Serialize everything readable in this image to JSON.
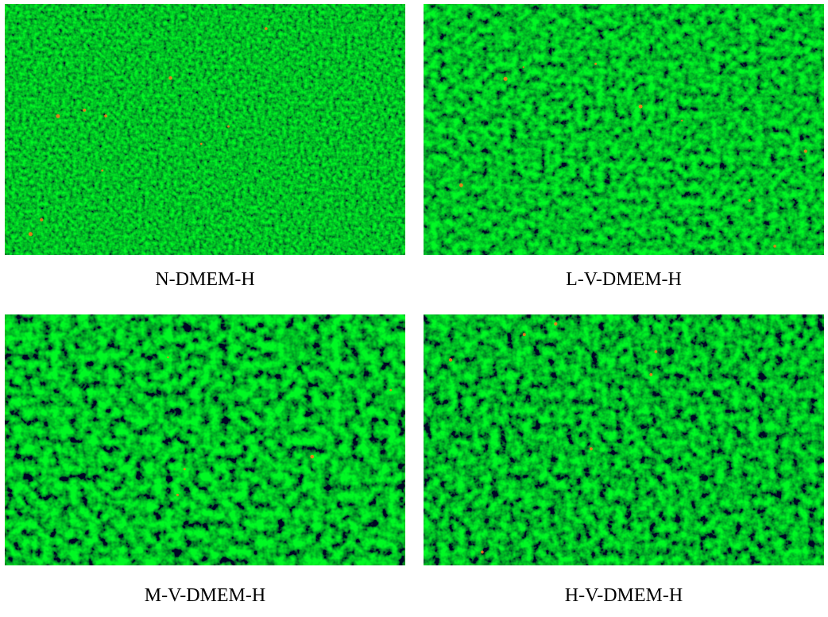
{
  "panels": [
    {
      "caption": "N-DMEM-H"
    },
    {
      "caption": "L-V-DMEM-H"
    },
    {
      "caption": "M-V-DMEM-H"
    },
    {
      "caption": "H-V-DMEM-H"
    }
  ],
  "colors": {
    "live_cells": "#22c21f",
    "dark_gaps": "#0b3d0b",
    "dead_cells": "#ff7a1a"
  }
}
